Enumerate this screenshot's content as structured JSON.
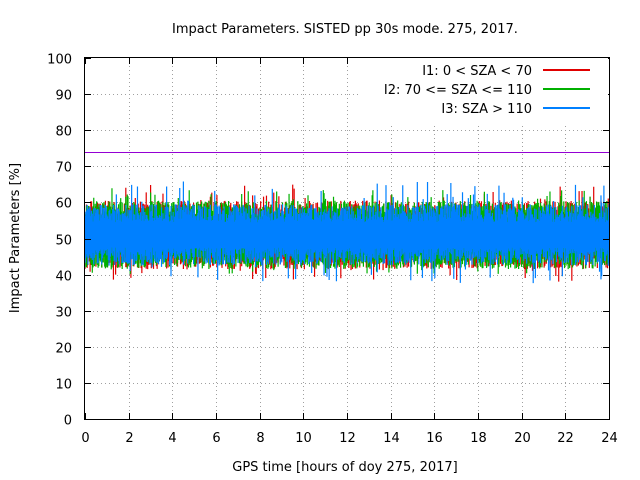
{
  "chart_data": {
    "type": "line",
    "title": "Impact Parameters. SISTED pp 30s mode. 275, 2017.",
    "xlabel": "GPS time [hours of doy 275, 2017]",
    "ylabel": "Impact Parameters [%]",
    "xlim": [
      0,
      24
    ],
    "ylim": [
      0,
      100
    ],
    "xticks": [
      "0",
      "2",
      "4",
      "6",
      "8",
      "10",
      "12",
      "14",
      "16",
      "18",
      "20",
      "22",
      "24"
    ],
    "yticks": [
      "0",
      "10",
      "20",
      "30",
      "40",
      "50",
      "60",
      "70",
      "80",
      "90",
      "100"
    ],
    "grid": true,
    "legend_position": "top-right",
    "series": [
      {
        "name": "I1: 0 < SZA < 70",
        "color": "#e00000",
        "mean": 51,
        "spread_low": 44,
        "spread_high": 58,
        "min": 38,
        "max": 65
      },
      {
        "name": "I2: 70 <= SZA <= 110",
        "color": "#00b000",
        "mean": 51,
        "spread_low": 44,
        "spread_high": 58,
        "min": 40,
        "max": 64
      },
      {
        "name": "I3: SZA > 110",
        "color": "#0080ff",
        "mean": 50,
        "spread_low": 45,
        "spread_high": 57,
        "min": 37,
        "max": 66
      }
    ],
    "reference_line": {
      "y": 74,
      "color": "#9400d3"
    }
  }
}
